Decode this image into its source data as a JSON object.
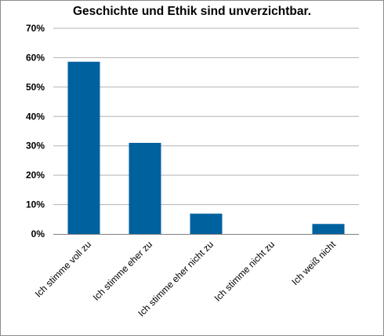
{
  "chart_data": {
    "type": "bar",
    "title": "Geschichte und Ethik sind unverzichtbar.",
    "categories": [
      "Ich stimme voll zu",
      "Ich stimme eher zu",
      "Ich stimme eher nicht zu",
      "Ich stimme nicht zu",
      "Ich weiß nicht"
    ],
    "values": [
      58.6,
      31.0,
      6.9,
      0,
      3.4
    ],
    "y_tick_labels": [
      "0%",
      "10%",
      "20%",
      "30%",
      "40%",
      "50%",
      "60%",
      "70%"
    ],
    "ylim": [
      0,
      70
    ],
    "y_unit": "%",
    "grid": true,
    "bar_color": "#00619f",
    "grid_color": "#b3b3b3",
    "axis_color": "#808080"
  }
}
